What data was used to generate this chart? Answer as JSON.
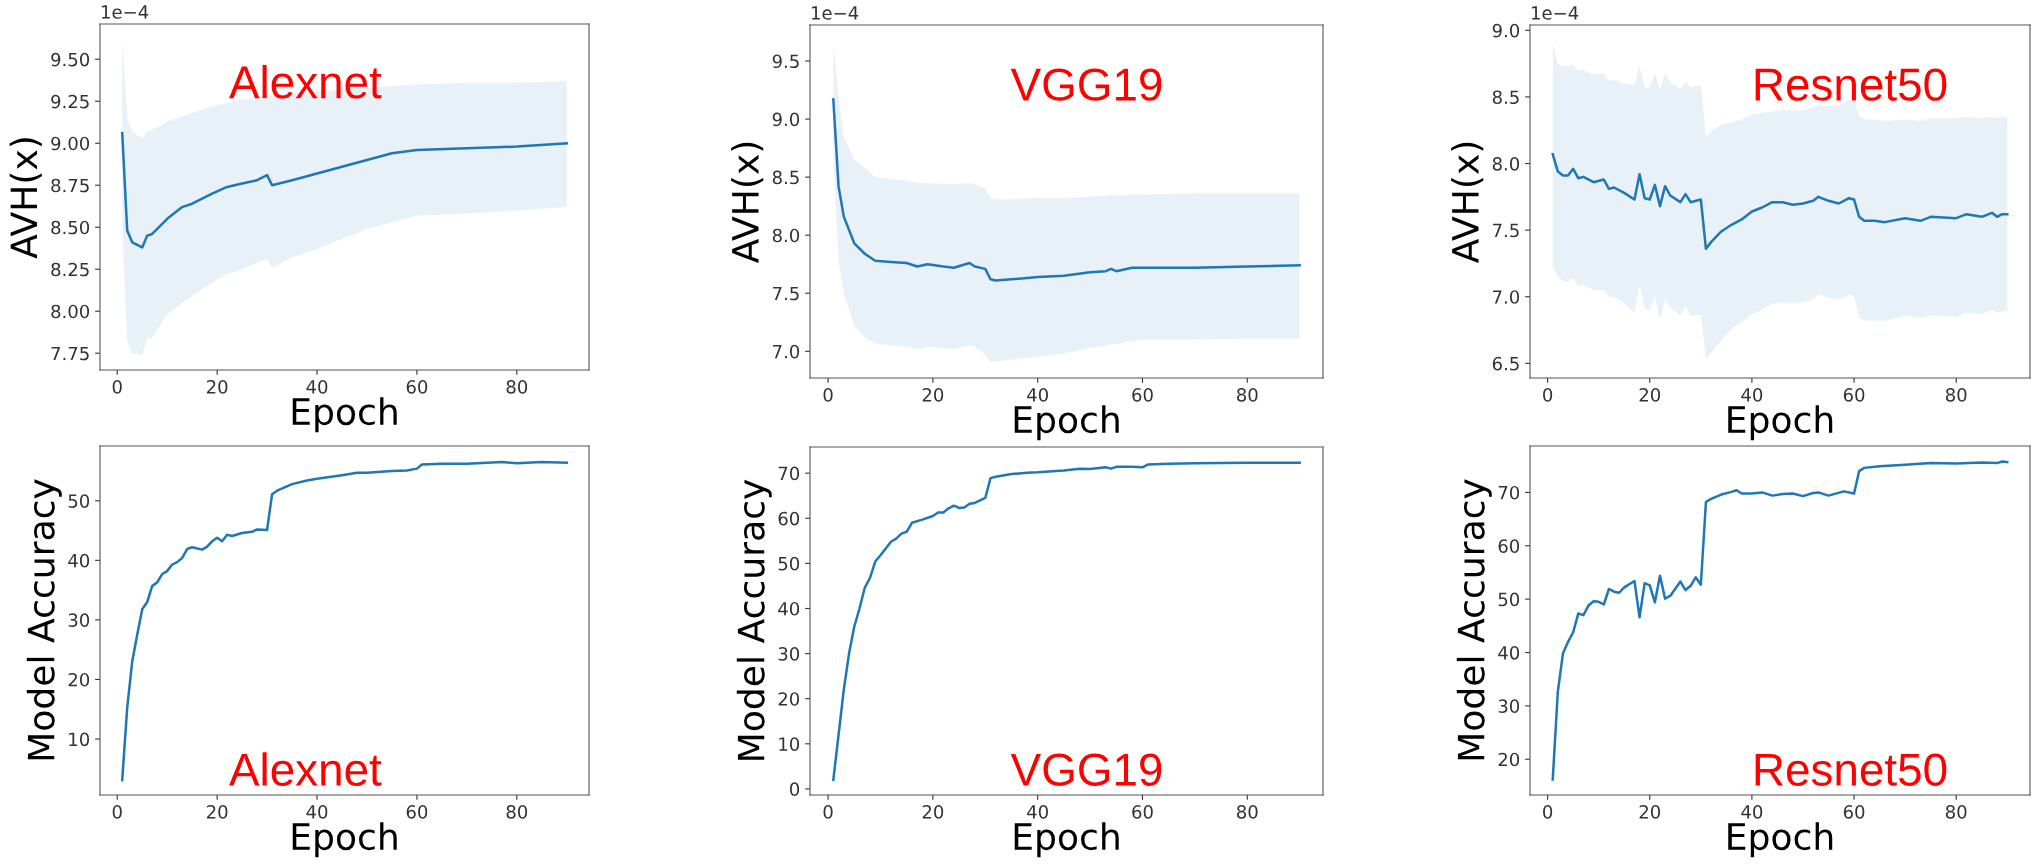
{
  "chart_data": [
    {
      "type": "line",
      "xlabel": "Epoch",
      "ylabel": "AVH(x)",
      "xlim": [
        -3.45,
        94.45
      ],
      "ylim": [
        7.65,
        9.71
      ],
      "xticks": [
        0,
        20,
        40,
        60,
        80
      ],
      "yticks": [
        {
          "value": 7.75,
          "label": "7.75"
        },
        {
          "value": 8.0,
          "label": "8.00"
        },
        {
          "value": 8.25,
          "label": "8.25"
        },
        {
          "value": 8.5,
          "label": "8.50"
        },
        {
          "value": 8.75,
          "label": "8.75"
        },
        {
          "value": 9.0,
          "label": "9.00"
        },
        {
          "value": 9.25,
          "label": "9.25"
        },
        {
          "value": 9.5,
          "label": "9.50"
        }
      ],
      "grid": false,
      "annotations": [
        "1e−4",
        "Alexnet"
      ],
      "x": [
        1,
        2,
        3,
        5,
        6,
        7,
        10,
        13,
        15,
        19,
        22,
        25,
        28,
        30,
        31,
        35,
        40,
        45,
        50,
        55,
        60,
        70,
        80,
        90
      ],
      "series": [
        {
          "color": "#1f77b4",
          "values": [
            9.06,
            8.48,
            8.41,
            8.38,
            8.45,
            8.46,
            8.55,
            8.62,
            8.64,
            8.7,
            8.74,
            8.76,
            8.78,
            8.81,
            8.75,
            8.78,
            8.82,
            8.86,
            8.9,
            8.94,
            8.96,
            8.97,
            8.98,
            9.0
          ],
          "upper": [
            9.61,
            9.15,
            9.07,
            9.03,
            9.07,
            9.08,
            9.13,
            9.16,
            9.18,
            9.22,
            9.24,
            9.26,
            9.27,
            9.29,
            9.29,
            9.3,
            9.31,
            9.32,
            9.33,
            9.34,
            9.35,
            9.36,
            9.36,
            9.37
          ],
          "lower": [
            8.5,
            7.82,
            7.75,
            7.74,
            7.84,
            7.84,
            7.98,
            8.05,
            8.09,
            8.17,
            8.22,
            8.25,
            8.29,
            8.31,
            8.26,
            8.32,
            8.37,
            8.43,
            8.49,
            8.53,
            8.57,
            8.58,
            8.6,
            8.62
          ]
        }
      ]
    },
    {
      "type": "line",
      "xlabel": "Epoch",
      "ylabel": "AVH(x)",
      "xlim": [
        -3.45,
        94.45
      ],
      "ylim": [
        6.77,
        9.81
      ],
      "xticks": [
        0,
        20,
        40,
        60,
        80
      ],
      "yticks": [
        {
          "value": 7.0,
          "label": "7.0"
        },
        {
          "value": 7.5,
          "label": "7.5"
        },
        {
          "value": 8.0,
          "label": "8.0"
        },
        {
          "value": 8.5,
          "label": "8.5"
        },
        {
          "value": 9.0,
          "label": "9.0"
        },
        {
          "value": 9.5,
          "label": "9.5"
        }
      ],
      "grid": false,
      "annotations": [
        "1e−4",
        "VGG19"
      ],
      "x": [
        1,
        2,
        3,
        5,
        7,
        9,
        12,
        15,
        17,
        19,
        22,
        24,
        27,
        28,
        30,
        31,
        32,
        35,
        40,
        45,
        50,
        53,
        54,
        55,
        58,
        60,
        70,
        80,
        90
      ],
      "series": [
        {
          "color": "#1f77b4",
          "values": [
            9.17,
            8.42,
            8.16,
            7.93,
            7.84,
            7.78,
            7.77,
            7.76,
            7.73,
            7.75,
            7.73,
            7.72,
            7.76,
            7.73,
            7.71,
            7.62,
            7.61,
            7.62,
            7.64,
            7.65,
            7.68,
            7.69,
            7.71,
            7.69,
            7.72,
            7.72,
            7.72,
            7.73,
            7.74
          ],
          "upper": [
            9.65,
            9.2,
            8.85,
            8.65,
            8.58,
            8.5,
            8.48,
            8.47,
            8.45,
            8.45,
            8.44,
            8.44,
            8.45,
            8.44,
            8.4,
            8.32,
            8.31,
            8.31,
            8.32,
            8.32,
            8.33,
            8.34,
            8.35,
            8.34,
            8.35,
            8.35,
            8.36,
            8.36,
            8.36
          ],
          "lower": [
            8.7,
            7.78,
            7.5,
            7.22,
            7.12,
            7.07,
            7.05,
            7.04,
            7.02,
            7.04,
            7.03,
            7.02,
            7.05,
            7.04,
            6.97,
            6.91,
            6.91,
            6.93,
            6.95,
            6.98,
            7.03,
            7.05,
            7.06,
            7.06,
            7.09,
            7.1,
            7.1,
            7.11,
            7.11
          ]
        }
      ]
    },
    {
      "type": "line",
      "xlabel": "Epoch",
      "ylabel": "AVH(x)",
      "xlim": [
        -3.45,
        94.45
      ],
      "ylim": [
        6.39,
        9.04
      ],
      "xticks": [
        0,
        20,
        40,
        60,
        80
      ],
      "yticks": [
        {
          "value": 6.5,
          "label": "6.5"
        },
        {
          "value": 7.0,
          "label": "7.0"
        },
        {
          "value": 7.5,
          "label": "7.5"
        },
        {
          "value": 8.0,
          "label": "8.0"
        },
        {
          "value": 8.5,
          "label": "8.5"
        },
        {
          "value": 9.0,
          "label": "9.0"
        }
      ],
      "grid": false,
      "annotations": [
        "1e−4",
        "Resnet50"
      ],
      "x": [
        1,
        2,
        3,
        4,
        5,
        6,
        7,
        9,
        11,
        12,
        13,
        15,
        17,
        18,
        19,
        20,
        21,
        22,
        23,
        24,
        26,
        27,
        28,
        30,
        31,
        32,
        34,
        36,
        38,
        40,
        42,
        44,
        46,
        48,
        50,
        52,
        53,
        55,
        57,
        58,
        59,
        60,
        61,
        62,
        64,
        66,
        70,
        73,
        75,
        80,
        82,
        85,
        87,
        88,
        89,
        90
      ],
      "series": [
        {
          "color": "#1f77b4",
          "values": [
            8.07,
            7.94,
            7.91,
            7.91,
            7.96,
            7.89,
            7.9,
            7.86,
            7.88,
            7.81,
            7.82,
            7.78,
            7.73,
            7.92,
            7.74,
            7.73,
            7.84,
            7.68,
            7.83,
            7.76,
            7.71,
            7.77,
            7.71,
            7.73,
            7.36,
            7.41,
            7.49,
            7.54,
            7.58,
            7.64,
            7.67,
            7.71,
            7.71,
            7.69,
            7.7,
            7.72,
            7.75,
            7.72,
            7.7,
            7.72,
            7.74,
            7.73,
            7.6,
            7.57,
            7.57,
            7.56,
            7.59,
            7.57,
            7.6,
            7.59,
            7.62,
            7.6,
            7.63,
            7.6,
            7.62,
            7.62
          ],
          "upper": [
            8.9,
            8.75,
            8.73,
            8.73,
            8.74,
            8.7,
            8.7,
            8.67,
            8.68,
            8.62,
            8.63,
            8.6,
            8.59,
            8.73,
            8.57,
            8.57,
            8.68,
            8.55,
            8.68,
            8.61,
            8.56,
            8.62,
            8.57,
            8.59,
            8.2,
            8.24,
            8.29,
            8.31,
            8.33,
            8.37,
            8.38,
            8.39,
            8.4,
            8.4,
            8.4,
            8.42,
            8.44,
            8.43,
            8.44,
            8.46,
            8.48,
            8.47,
            8.36,
            8.33,
            8.33,
            8.32,
            8.33,
            8.32,
            8.34,
            8.34,
            8.35,
            8.34,
            8.35,
            8.34,
            8.35,
            8.35
          ],
          "lower": [
            7.22,
            7.15,
            7.12,
            7.11,
            7.14,
            7.08,
            7.09,
            7.05,
            7.05,
            7.0,
            7.0,
            6.95,
            6.88,
            7.09,
            6.91,
            6.9,
            7.01,
            6.83,
            6.98,
            6.92,
            6.86,
            6.93,
            6.86,
            6.86,
            6.53,
            6.58,
            6.67,
            6.76,
            6.81,
            6.87,
            6.9,
            6.95,
            6.96,
            6.95,
            6.96,
            6.98,
            7.02,
            6.99,
            6.98,
            6.99,
            7.02,
            7.0,
            6.85,
            6.82,
            6.82,
            6.82,
            6.86,
            6.84,
            6.86,
            6.85,
            6.88,
            6.87,
            6.9,
            6.88,
            6.89,
            6.9
          ]
        }
      ]
    },
    {
      "type": "line",
      "xlabel": "Epoch",
      "ylabel": "Model Accuracy",
      "xlim": [
        -3.45,
        94.45
      ],
      "ylim": [
        0.6,
        59.2
      ],
      "xticks": [
        0,
        20,
        40,
        60,
        80
      ],
      "yticks": [
        10,
        20,
        30,
        40,
        50
      ],
      "grid": false,
      "annotations": [
        "Alexnet"
      ],
      "x": [
        1,
        2,
        3,
        4,
        5,
        6,
        7,
        8,
        9,
        10,
        11,
        12,
        13,
        14,
        15,
        17,
        18,
        19,
        20,
        21,
        22,
        23,
        25,
        27,
        28,
        30,
        31,
        32,
        35,
        38,
        40,
        45,
        48,
        50,
        55,
        58,
        60,
        61,
        65,
        70,
        77,
        80,
        85,
        90
      ],
      "series": [
        {
          "color": "#1f77b4",
          "values": [
            3.1,
            15.3,
            23,
            27.5,
            31.8,
            33,
            35.7,
            36.3,
            37.7,
            38.2,
            39.3,
            39.7,
            40.4,
            41.9,
            42.2,
            41.8,
            42.3,
            43.2,
            43.8,
            43.2,
            44.3,
            44.1,
            44.6,
            44.8,
            45.2,
            45.1,
            51.1,
            51.7,
            52.8,
            53.4,
            53.7,
            54.3,
            54.7,
            54.7,
            55.0,
            55.1,
            55.4,
            56.1,
            56.2,
            56.2,
            56.5,
            56.3,
            56.5,
            56.4
          ]
        }
      ]
    },
    {
      "type": "line",
      "xlabel": "Epoch",
      "ylabel": "Model Accuracy",
      "xlim": [
        -3.45,
        94.45
      ],
      "ylim": [
        -1.35,
        75.8
      ],
      "xticks": [
        0,
        20,
        40,
        60,
        80
      ],
      "yticks": [
        0,
        10,
        20,
        30,
        40,
        50,
        60,
        70
      ],
      "grid": false,
      "annotations": [
        "VGG19"
      ],
      "x": [
        1,
        2,
        3,
        4,
        5,
        6,
        7,
        8,
        9,
        10,
        12,
        13,
        14,
        15,
        16,
        18,
        20,
        21,
        22,
        23,
        24,
        25,
        26,
        27,
        28,
        30,
        31,
        32,
        35,
        38,
        40,
        45,
        48,
        50,
        53,
        54,
        55,
        58,
        60,
        61,
        65,
        70,
        80,
        90
      ],
      "series": [
        {
          "color": "#1f77b4",
          "values": [
            2.0,
            12,
            22,
            30,
            36,
            40,
            44.6,
            46.8,
            50.4,
            51.8,
            54.8,
            55.5,
            56.6,
            57,
            59,
            59.7,
            60.5,
            61.3,
            61.3,
            62.2,
            62.8,
            62.3,
            62.4,
            63.2,
            63.4,
            64.5,
            68.9,
            69.2,
            69.8,
            70.1,
            70.2,
            70.6,
            71.0,
            70.9,
            71.3,
            71.0,
            71.4,
            71.4,
            71.3,
            71.9,
            72.1,
            72.2,
            72.3,
            72.3
          ]
        }
      ]
    },
    {
      "type": "line",
      "xlabel": "Epoch",
      "ylabel": "Model Accuracy",
      "xlim": [
        -3.45,
        94.45
      ],
      "ylim": [
        13.3,
        78.7
      ],
      "xticks": [
        0,
        20,
        40,
        60,
        80
      ],
      "yticks": [
        20,
        30,
        40,
        50,
        60,
        70
      ],
      "grid": false,
      "annotations": [
        "Resnet50"
      ],
      "x": [
        1,
        2,
        3,
        4,
        5,
        6,
        7,
        8,
        9,
        10,
        11,
        12,
        13,
        14,
        15,
        17,
        18,
        19,
        20,
        21,
        22,
        23,
        24,
        26,
        27,
        28,
        29,
        30,
        31,
        32,
        34,
        36,
        37,
        38,
        40,
        42,
        44,
        46,
        48,
        50,
        52,
        53,
        55,
        58,
        60,
        61,
        62,
        65,
        70,
        75,
        80,
        85,
        88,
        89,
        90
      ],
      "series": [
        {
          "color": "#1f77b4",
          "values": [
            16.2,
            32.7,
            39.8,
            42.0,
            43.8,
            47.3,
            47.0,
            48.8,
            49.6,
            49.5,
            49.0,
            51.9,
            51.4,
            51.2,
            52.2,
            53.4,
            46.6,
            53.0,
            52.6,
            49.4,
            54.4,
            50.1,
            50.6,
            53.3,
            51.7,
            52.5,
            54.1,
            52.7,
            68.2,
            68.8,
            69.6,
            70.1,
            70.4,
            69.8,
            69.8,
            70.0,
            69.4,
            69.7,
            69.8,
            69.3,
            69.9,
            70.0,
            69.4,
            70.2,
            69.8,
            74.0,
            74.6,
            74.9,
            75.2,
            75.5,
            75.4,
            75.6,
            75.5,
            75.8,
            75.7
          ]
        }
      ]
    }
  ]
}
